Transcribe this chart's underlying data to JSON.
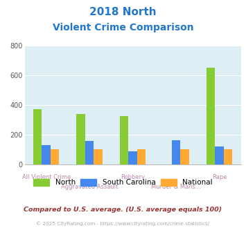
{
  "title_line1": "2018 North",
  "title_line2": "Violent Crime Comparison",
  "categories": [
    "All Violent Crime",
    "Aggravated Assault",
    "Robbery",
    "Murder & Mans...",
    "Rape"
  ],
  "series": {
    "North": [
      370,
      340,
      325,
      0,
      650
    ],
    "South Carolina": [
      130,
      155,
      85,
      160,
      120
    ],
    "National": [
      100,
      100,
      100,
      100,
      100
    ]
  },
  "colors": {
    "North": "#88cc33",
    "South Carolina": "#4488ee",
    "National": "#ffaa33"
  },
  "ylim": [
    0,
    800
  ],
  "yticks": [
    0,
    200,
    400,
    600,
    800
  ],
  "plot_bg": "#ddeef4",
  "title_color": "#2277cc",
  "footnote1": "Compared to U.S. average. (U.S. average equals 100)",
  "footnote2": "© 2025 CityRating.com - https://www.cityrating.com/crime-statistics/",
  "footnote1_color": "#993333",
  "footnote2_color": "#aaaaaa",
  "xlabel_color": "#bb88aa",
  "ytick_color": "#555555",
  "grid_color": "#ffffff"
}
